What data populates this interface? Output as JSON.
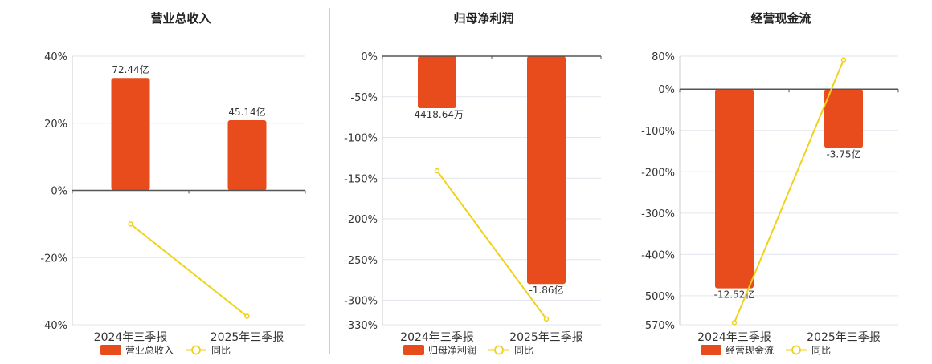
{
  "colors": {
    "bar": "#e84b1c",
    "line": "#f0d21b",
    "grid": "#e3e6ee",
    "axis": "#555555",
    "text": "#333333"
  },
  "chart_data": [
    {
      "type": "bar",
      "title": "营业总收入",
      "categories": [
        "2024年三季报",
        "2025年三季报"
      ],
      "series": [
        {
          "name": "营业总收入",
          "kind": "bar",
          "values": [
            33.5,
            20.9
          ],
          "labels": [
            "72.44亿",
            "45.14亿"
          ]
        },
        {
          "name": "同比",
          "kind": "line",
          "values": [
            -10,
            -37.5
          ]
        }
      ],
      "ylim": [
        -40,
        40
      ],
      "yticks": [
        40,
        20,
        0,
        -20,
        -40
      ],
      "ytick_labels": [
        "40%",
        "20%",
        "0%",
        "-20%",
        "-40%"
      ],
      "legend": "bottom",
      "grid": true
    },
    {
      "type": "bar",
      "title": "归母净利润",
      "categories": [
        "2024年三季报",
        "2025年三季报"
      ],
      "series": [
        {
          "name": "归母净利润",
          "kind": "bar",
          "values": [
            -64,
            -280
          ],
          "labels": [
            "-4418.64万",
            "-1.86亿"
          ]
        },
        {
          "name": "同比",
          "kind": "line",
          "values": [
            -141,
            -323
          ]
        }
      ],
      "ylim": [
        -330,
        0
      ],
      "yticks": [
        0,
        -50,
        -100,
        -150,
        -200,
        -250,
        -300,
        -330
      ],
      "ytick_labels": [
        "0%",
        "-50%",
        "-100%",
        "-150%",
        "-200%",
        "-250%",
        "-300%",
        "-330%"
      ],
      "legend": "bottom",
      "grid": true
    },
    {
      "type": "bar",
      "title": "经营现金流",
      "categories": [
        "2024年三季报",
        "2025年三季报"
      ],
      "series": [
        {
          "name": "经营现金流",
          "kind": "bar",
          "values": [
            -482,
            -142
          ],
          "labels": [
            "-12.52亿",
            "-3.75亿"
          ]
        },
        {
          "name": "同比",
          "kind": "line",
          "values": [
            -565,
            71
          ]
        }
      ],
      "ylim": [
        -570,
        80
      ],
      "yticks": [
        80,
        0,
        -100,
        -200,
        -300,
        -400,
        -500,
        -570
      ],
      "ytick_labels": [
        "80%",
        "0%",
        "-100%",
        "-200%",
        "-300%",
        "-400%",
        "-500%",
        "-570%"
      ],
      "legend": "bottom",
      "grid": true
    }
  ]
}
